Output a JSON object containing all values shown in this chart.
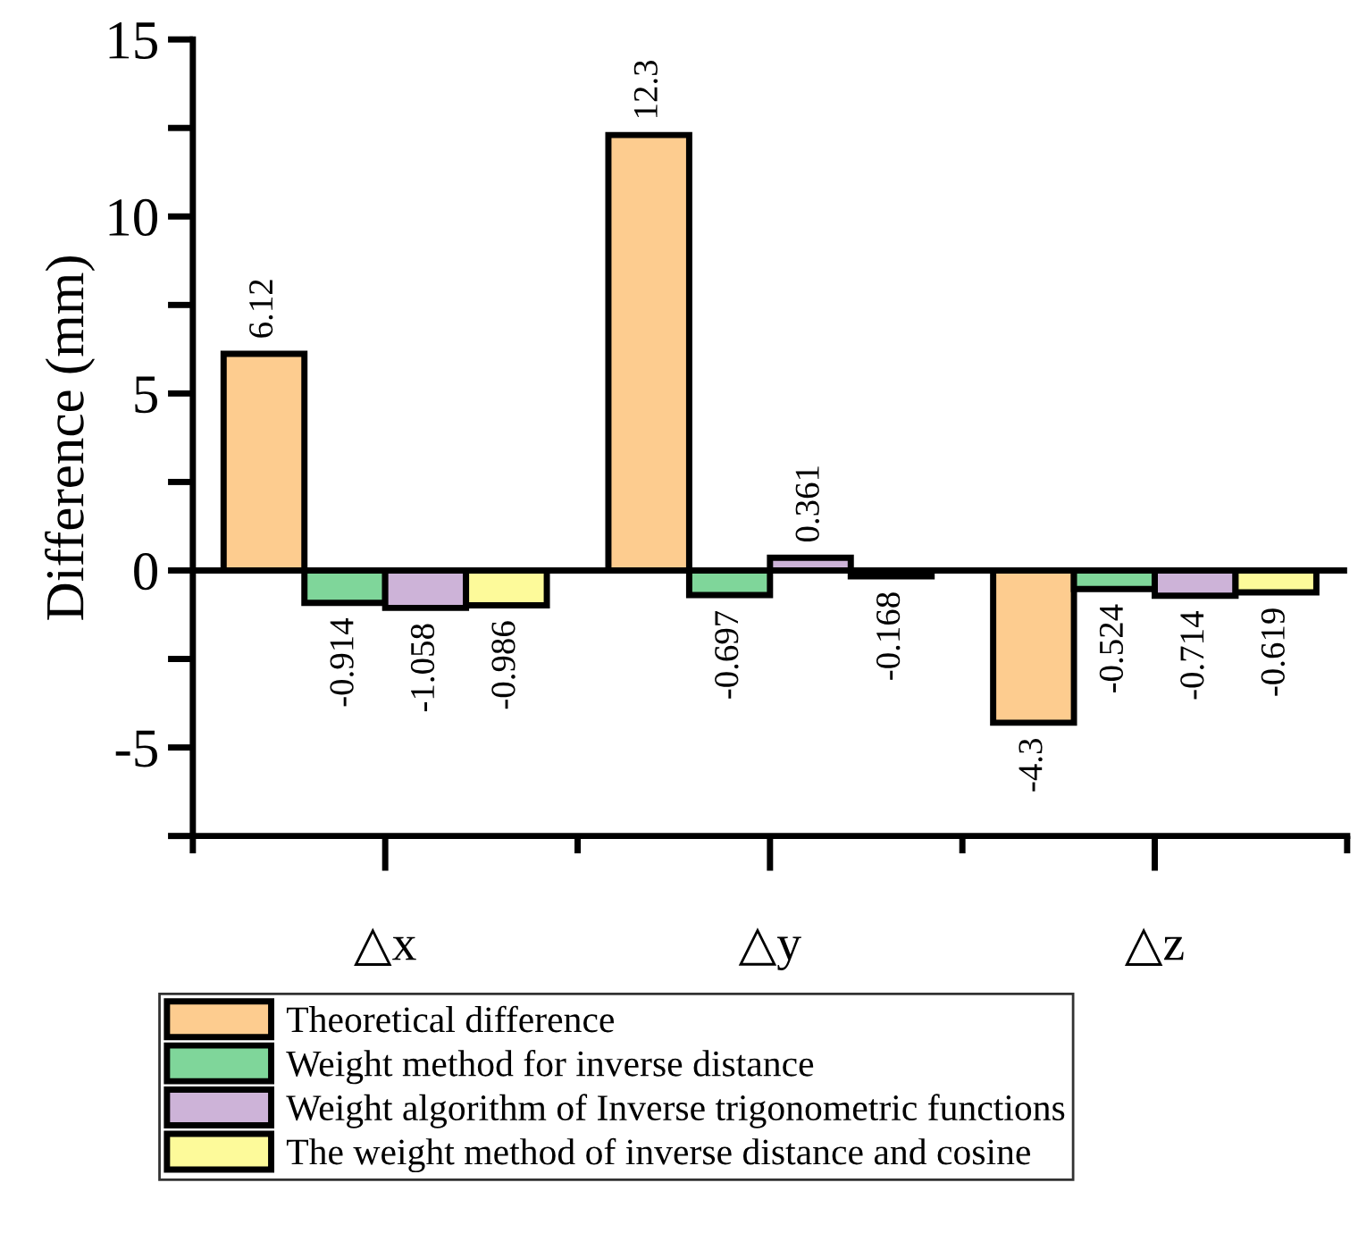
{
  "chart_data": {
    "type": "bar",
    "ylabel": "Difference (mm)",
    "categories": [
      "△x",
      "△y",
      "△z"
    ],
    "series": [
      {
        "name": "Theoretical difference",
        "color": "#fdcc8f",
        "values": [
          6.12,
          12.3,
          -4.3
        ]
      },
      {
        "name": "Weight method for inverse distance",
        "color": "#7fd69a",
        "values": [
          -0.914,
          -0.697,
          -0.524
        ]
      },
      {
        "name": "Weight algorithm of Inverse trigonometric functions",
        "color": "#cdb3d8",
        "values": [
          -1.058,
          0.361,
          -0.714
        ]
      },
      {
        "name": "The weight method of inverse distance and cosine",
        "color": "#fdfa9a",
        "values": [
          -0.986,
          -0.168,
          -0.619
        ]
      }
    ],
    "ylim": [
      -7.5,
      15
    ],
    "yticks": [
      {
        "value": -7.5,
        "label": null
      },
      -5,
      {
        "value": -2.5,
        "label": null
      },
      0,
      {
        "value": 2.5,
        "label": null
      },
      5,
      {
        "value": 7.5,
        "label": null
      },
      10,
      {
        "value": 12.5,
        "label": null
      },
      15
    ],
    "ref_lines": [
      {
        "axis": "y",
        "value": 0,
        "color": "#000000"
      }
    ],
    "data_labels": true,
    "legend": "bottom",
    "grid": false
  }
}
